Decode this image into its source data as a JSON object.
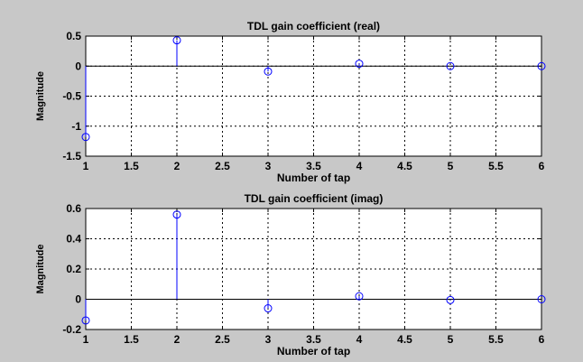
{
  "figure": {
    "background": "#c8c8c8",
    "axes_background": "#ffffff",
    "stem_color": "#0000ff"
  },
  "chart_data": [
    {
      "type": "stem",
      "title": "TDL gain coefficient (real)",
      "xlabel": "Number of tap",
      "ylabel": "Magnitude",
      "x": [
        1,
        2,
        3,
        4,
        5,
        6
      ],
      "values": [
        -1.18,
        0.43,
        -0.09,
        0.04,
        0.0,
        0.0
      ],
      "xlim": [
        1,
        6
      ],
      "ylim": [
        -1.5,
        0.5
      ],
      "xticks": [
        1,
        1.5,
        2,
        2.5,
        3,
        3.5,
        4,
        4.5,
        5,
        5.5,
        6
      ],
      "xticklabels": [
        "1",
        "1.5",
        "2",
        "2.5",
        "3",
        "3.5",
        "4",
        "4.5",
        "5",
        "5.5",
        "6"
      ],
      "yticks": [
        0.5,
        0,
        -0.5,
        -1,
        -1.5
      ],
      "yticklabels": [
        "0.5",
        "0",
        "-0.5",
        "-1",
        "-1.5"
      ],
      "grid": true
    },
    {
      "type": "stem",
      "title": "TDL gain coefficient (imag)",
      "xlabel": "Number of tap",
      "ylabel": "Magnitude",
      "x": [
        1,
        2,
        3,
        4,
        5,
        6
      ],
      "values": [
        -0.14,
        0.56,
        -0.06,
        0.02,
        -0.005,
        0.0
      ],
      "xlim": [
        1,
        6
      ],
      "ylim": [
        -0.2,
        0.6
      ],
      "xticks": [
        1,
        1.5,
        2,
        2.5,
        3,
        3.5,
        4,
        4.5,
        5,
        5.5,
        6
      ],
      "xticklabels": [
        "1",
        "1.5",
        "2",
        "2.5",
        "3",
        "3.5",
        "4",
        "4.5",
        "5",
        "5.5",
        "6"
      ],
      "yticks": [
        0.6,
        0.4,
        0.2,
        0,
        -0.2
      ],
      "yticklabels": [
        "0.6",
        "0.4",
        "0.2",
        "0",
        "-0.2"
      ],
      "grid": true
    }
  ]
}
